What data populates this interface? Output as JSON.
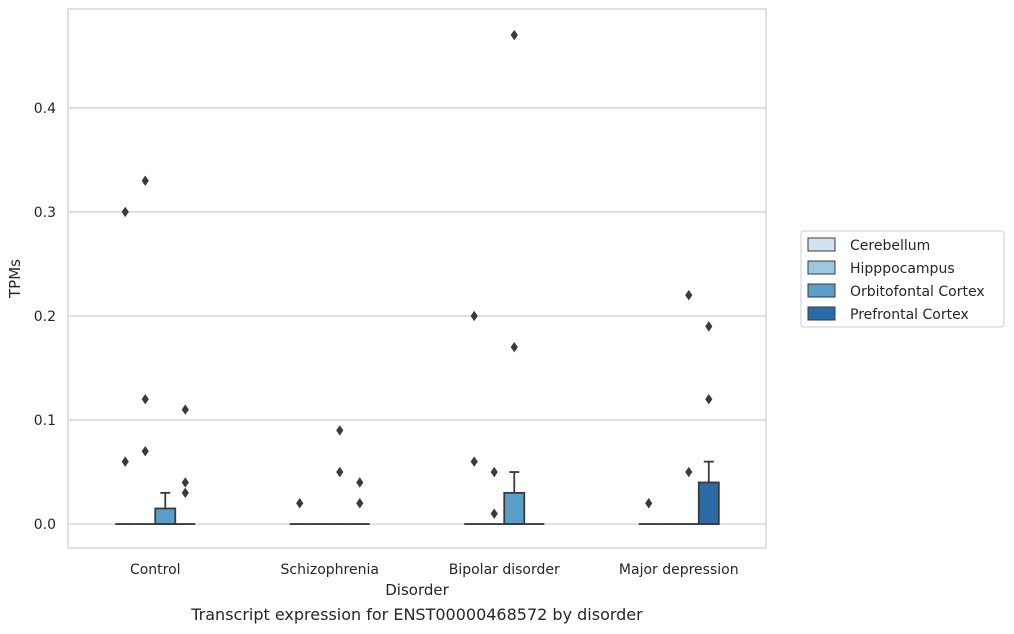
{
  "caption": "Transcript expression for ENST00000468572 by disorder",
  "chart_data": {
    "type": "box",
    "title": "",
    "xlabel": "Disorder",
    "ylabel": "TPMs",
    "ylim": [
      -0.023,
      0.495
    ],
    "yticks": [
      0.0,
      0.1,
      0.2,
      0.3,
      0.4
    ],
    "ytick_labels": [
      "0.0",
      "0.1",
      "0.2",
      "0.3",
      "0.4"
    ],
    "grid": "horizontal",
    "legend_position": "right-outside",
    "categories": [
      "Control",
      "Schizophrenia",
      "Bipolar disorder",
      "Major depression"
    ],
    "series": [
      {
        "name": "Cerebellum",
        "color": "#d0e2f2",
        "boxes": [
          {
            "q1": 0,
            "median": 0,
            "q3": 0,
            "whisker_low": 0,
            "whisker_high": 0,
            "outliers": [
              0.06,
              0.3
            ]
          },
          {
            "q1": 0,
            "median": 0,
            "q3": 0,
            "whisker_low": 0,
            "whisker_high": 0,
            "outliers": [
              0.02
            ]
          },
          {
            "q1": 0,
            "median": 0,
            "q3": 0,
            "whisker_low": 0,
            "whisker_high": 0,
            "outliers": [
              0.06,
              0.2
            ]
          },
          {
            "q1": 0,
            "median": 0,
            "q3": 0,
            "whisker_low": 0,
            "whisker_high": 0,
            "outliers": [
              0.02
            ]
          }
        ]
      },
      {
        "name": "Hipppocampus",
        "color": "#9ac8e0",
        "boxes": [
          {
            "q1": 0,
            "median": 0,
            "q3": 0,
            "whisker_low": 0,
            "whisker_high": 0,
            "outliers": [
              0.07,
              0.12,
              0.33
            ]
          },
          {
            "q1": 0,
            "median": 0,
            "q3": 0,
            "whisker_low": 0,
            "whisker_high": 0,
            "outliers": []
          },
          {
            "q1": 0,
            "median": 0,
            "q3": 0,
            "whisker_low": 0,
            "whisker_high": 0,
            "outliers": [
              0.01,
              0.05
            ]
          },
          {
            "q1": 0,
            "median": 0,
            "q3": 0,
            "whisker_low": 0,
            "whisker_high": 0,
            "outliers": []
          }
        ]
      },
      {
        "name": "Orbitofontal Cortex",
        "color": "#5a9ec9",
        "boxes": [
          {
            "q1": 0,
            "median": 0,
            "q3": 0.015,
            "whisker_low": 0,
            "whisker_high": 0.03,
            "outliers": []
          },
          {
            "q1": 0,
            "median": 0,
            "q3": 0,
            "whisker_low": 0,
            "whisker_high": 0,
            "outliers": [
              0.05,
              0.09
            ]
          },
          {
            "q1": 0,
            "median": 0,
            "q3": 0.03,
            "whisker_low": 0,
            "whisker_high": 0.05,
            "outliers": [
              0.17,
              0.47
            ]
          },
          {
            "q1": 0,
            "median": 0,
            "q3": 0,
            "whisker_low": 0,
            "whisker_high": 0,
            "outliers": [
              0.05,
              0.22
            ]
          }
        ]
      },
      {
        "name": "Prefrontal Cortex",
        "color": "#2b6ca8",
        "boxes": [
          {
            "q1": 0,
            "median": 0,
            "q3": 0,
            "whisker_low": 0,
            "whisker_high": 0,
            "outliers": [
              0.03,
              0.04,
              0.11
            ]
          },
          {
            "q1": 0,
            "median": 0,
            "q3": 0,
            "whisker_low": 0,
            "whisker_high": 0,
            "outliers": [
              0.02,
              0.04
            ]
          },
          {
            "q1": 0,
            "median": 0,
            "q3": 0,
            "whisker_low": 0,
            "whisker_high": 0,
            "outliers": []
          },
          {
            "q1": 0,
            "median": 0,
            "q3": 0.04,
            "whisker_low": 0,
            "whisker_high": 0.06,
            "outliers": [
              0.12,
              0.19
            ]
          }
        ]
      }
    ]
  }
}
